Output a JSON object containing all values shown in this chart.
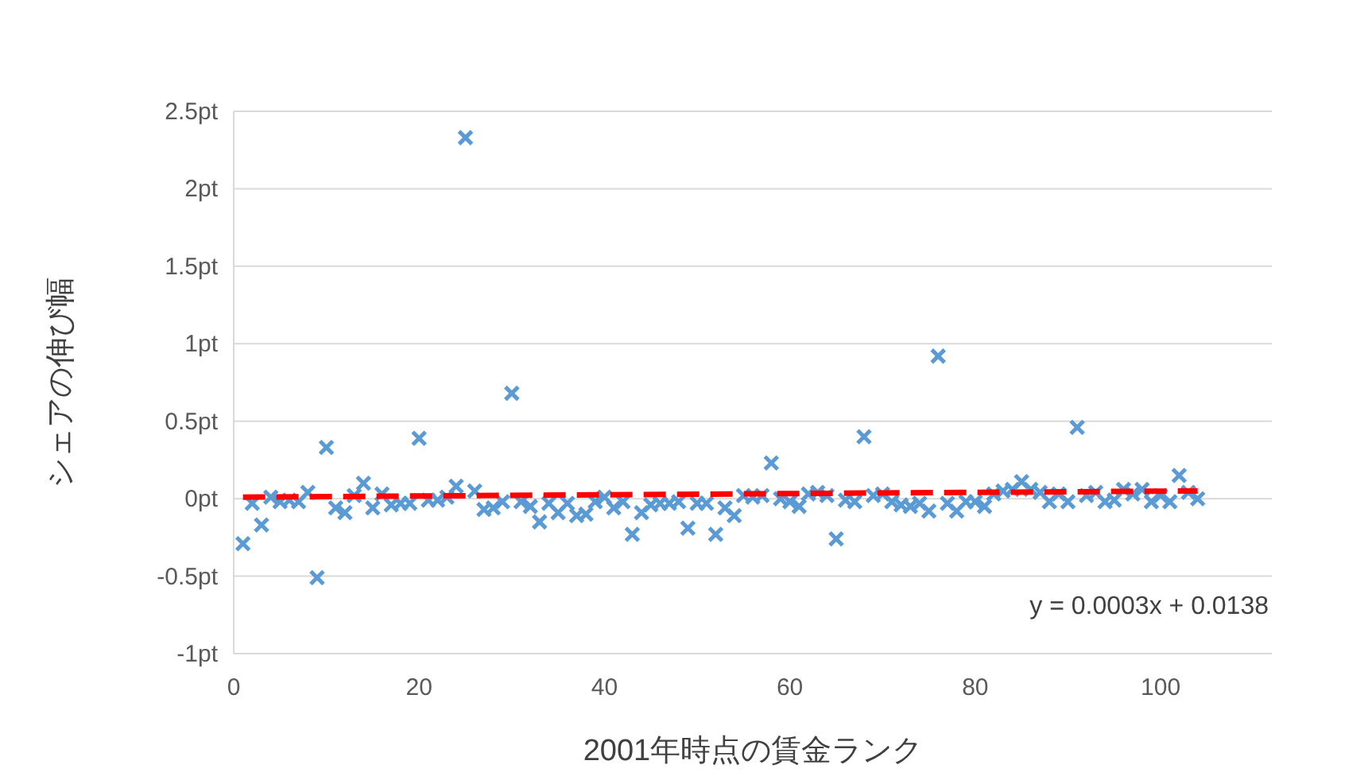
{
  "chart_data": {
    "type": "scatter",
    "xlabel": "2001年時点の賃金ランク",
    "ylabel": "シェアの伸び幅",
    "xlim": [
      0,
      112
    ],
    "xticks": [
      0,
      20,
      40,
      60,
      80,
      100
    ],
    "ylim": [
      -1,
      2.5
    ],
    "yticks": [
      {
        "value": -1,
        "label": "-1pt"
      },
      {
        "value": -0.5,
        "label": "-0.5pt"
      },
      {
        "value": 0,
        "label": "0pt"
      },
      {
        "value": 0.5,
        "label": "0.5pt"
      },
      {
        "value": 1,
        "label": "1pt"
      },
      {
        "value": 1.5,
        "label": "1.5pt"
      },
      {
        "value": 2,
        "label": "2pt"
      },
      {
        "value": 2.5,
        "label": "2.5pt"
      }
    ],
    "grid": "y",
    "annotations": [
      "y = 0.0003x + 0.0138"
    ],
    "series": [
      {
        "color": "#5b9bd5",
        "marker": "cross",
        "x": [
          1,
          2,
          3,
          4,
          5,
          6,
          7,
          8,
          9,
          10,
          11,
          12,
          13,
          14,
          15,
          16,
          17,
          18,
          19,
          20,
          21,
          22,
          23,
          24,
          25,
          26,
          27,
          28,
          29,
          30,
          31,
          32,
          33,
          34,
          35,
          36,
          37,
          38,
          39,
          40,
          41,
          42,
          43,
          44,
          45,
          46,
          47,
          48,
          49,
          50,
          51,
          52,
          53,
          54,
          55,
          56,
          57,
          58,
          59,
          60,
          61,
          62,
          63,
          64,
          65,
          66,
          67,
          68,
          69,
          70,
          71,
          72,
          73,
          74,
          75,
          76,
          77,
          78,
          79,
          80,
          81,
          82,
          83,
          84,
          85,
          86,
          87,
          88,
          89,
          90,
          91,
          92,
          93,
          94,
          95,
          96,
          97,
          98,
          99,
          100,
          101,
          102,
          103,
          104
        ],
        "values": [
          -0.29,
          -0.03,
          -0.17,
          0.01,
          -0.02,
          -0.01,
          -0.02,
          0.04,
          -0.51,
          0.33,
          -0.06,
          -0.09,
          0.02,
          0.1,
          -0.06,
          0.03,
          -0.04,
          -0.03,
          -0.03,
          0.39,
          -0.01,
          -0.01,
          0.01,
          0.08,
          2.33,
          0.05,
          -0.07,
          -0.06,
          -0.02,
          0.68,
          -0.02,
          -0.05,
          -0.15,
          -0.03,
          -0.09,
          -0.03,
          -0.11,
          -0.1,
          -0.02,
          0.01,
          -0.06,
          -0.02,
          -0.23,
          -0.09,
          -0.04,
          -0.03,
          -0.03,
          -0.02,
          -0.19,
          -0.03,
          -0.03,
          -0.23,
          -0.06,
          -0.11,
          0.02,
          0.01,
          0.02,
          0.23,
          0.0,
          -0.02,
          -0.05,
          0.03,
          0.04,
          0.02,
          -0.26,
          -0.01,
          -0.02,
          0.4,
          0.02,
          0.03,
          -0.02,
          -0.04,
          -0.05,
          -0.03,
          -0.08,
          0.92,
          -0.03,
          -0.08,
          -0.02,
          -0.02,
          -0.05,
          0.03,
          0.05,
          0.06,
          0.11,
          0.06,
          0.04,
          -0.02,
          0.03,
          -0.02,
          0.46,
          0.02,
          0.04,
          -0.02,
          -0.01,
          0.06,
          0.03,
          0.06,
          -0.02,
          0.02,
          -0.02,
          0.15,
          0.04,
          0.0
        ]
      },
      {
        "type": "line",
        "color": "#ff0000",
        "line_style": "dashed",
        "x": [
          1,
          104
        ],
        "values": [
          0.01,
          0.05
        ]
      }
    ]
  }
}
